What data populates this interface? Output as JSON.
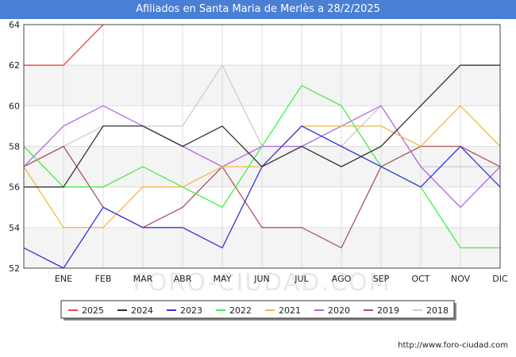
{
  "title": "Afiliados en Santa Maria de Merlès a 28/2/2025",
  "footer": "http://www.foro-ciudad.com",
  "watermark": "FORO-CIUDAD.COM",
  "chart_data": {
    "type": "line",
    "title": "Afiliados en Santa Maria de Merlès a 28/2/2025",
    "xlabel": "",
    "ylabel": "",
    "categories": [
      "",
      "ENE",
      "FEB",
      "MAR",
      "ABR",
      "MAY",
      "JUN",
      "JUL",
      "AGO",
      "SEP",
      "OCT",
      "NOV",
      "DIC"
    ],
    "ylim": [
      52,
      64
    ],
    "yticks": [
      52,
      54,
      56,
      58,
      60,
      62,
      64
    ],
    "grid": true,
    "legend_position": "bottom",
    "series": [
      {
        "name": "2025",
        "color": "#ee4444",
        "values": [
          62,
          62,
          64,
          null,
          null,
          null,
          null,
          null,
          null,
          null,
          null,
          null,
          null
        ]
      },
      {
        "name": "2024",
        "color": "#333333",
        "values": [
          56,
          56,
          59,
          59,
          58,
          59,
          57,
          58,
          57,
          58,
          60,
          62,
          62
        ]
      },
      {
        "name": "2023",
        "color": "#3333dd",
        "values": [
          53,
          52,
          55,
          54,
          54,
          53,
          57,
          59,
          58,
          57,
          56,
          58,
          56
        ]
      },
      {
        "name": "2022",
        "color": "#44ee44",
        "values": [
          58,
          56,
          56,
          57,
          56,
          55,
          58,
          61,
          60,
          57,
          56,
          53,
          53
        ]
      },
      {
        "name": "2021",
        "color": "#f5b942",
        "values": [
          57,
          54,
          54,
          56,
          56,
          57,
          57,
          59,
          59,
          59,
          58,
          60,
          58
        ]
      },
      {
        "name": "2020",
        "color": "#b366e6",
        "values": [
          57,
          59,
          60,
          59,
          58,
          57,
          58,
          58,
          59,
          60,
          57,
          55,
          57
        ]
      },
      {
        "name": "2019",
        "color": "#aa5555",
        "values": [
          57,
          58,
          55,
          54,
          55,
          57,
          54,
          54,
          53,
          57,
          58,
          58,
          57
        ]
      },
      {
        "name": "2018",
        "color": "#cccccc",
        "values": [
          57,
          58,
          59,
          59,
          59,
          62,
          58,
          58,
          58,
          60,
          57,
          57,
          57
        ]
      }
    ]
  }
}
